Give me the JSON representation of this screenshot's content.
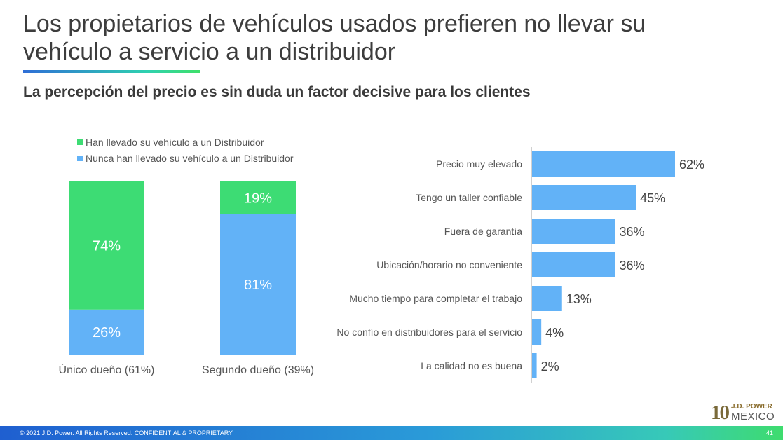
{
  "title": "Los propietarios de vehículos usados prefieren no llevar su vehículo a servicio a un distribuidor",
  "subtitle": "La percepción del precio es sin duda un factor decisive para los clientes",
  "colors": {
    "green": "#3ddc74",
    "blue": "#62b2f7",
    "text": "#555555"
  },
  "chart_data": [
    {
      "type": "bar",
      "stacked": true,
      "categories": [
        "Único dueño (61%)",
        "Segundo dueño (39%)"
      ],
      "series": [
        {
          "name": "Nunca han llevado su vehículo a  un Distribuidor",
          "values": [
            26,
            81
          ],
          "labels": [
            "26%",
            "81%"
          ],
          "color": "#62b2f7"
        },
        {
          "name": "Han llevado su vehículo a un Distribuidor",
          "values": [
            74,
            19
          ],
          "labels": [
            "74%",
            "19%"
          ],
          "color": "#3ddc74"
        }
      ],
      "ylim": [
        0,
        100
      ],
      "legend_position": "top-left"
    },
    {
      "type": "bar",
      "orientation": "horizontal",
      "categories": [
        "Precio muy elevado",
        "Tengo un taller confiable",
        "Fuera de garantía",
        "Ubicación/horario no conveniente",
        "Mucho tiempo para completar el trabajo",
        "No confío en distribuidores para el servicio",
        "La calidad no es buena"
      ],
      "values": [
        62,
        45,
        36,
        36,
        13,
        4,
        2
      ],
      "labels": [
        "62%",
        "45%",
        "36%",
        "36%",
        "13%",
        "4%",
        "2%"
      ],
      "color": "#62b2f7"
    }
  ],
  "footer": {
    "text": "© 2021 J.D. Power. All Rights Reserved. CONFIDENTIAL & PROPRIETARY",
    "page": "41"
  },
  "logo": {
    "number": "10",
    "brand": "J.D. POWER",
    "country": "MEXICO"
  }
}
